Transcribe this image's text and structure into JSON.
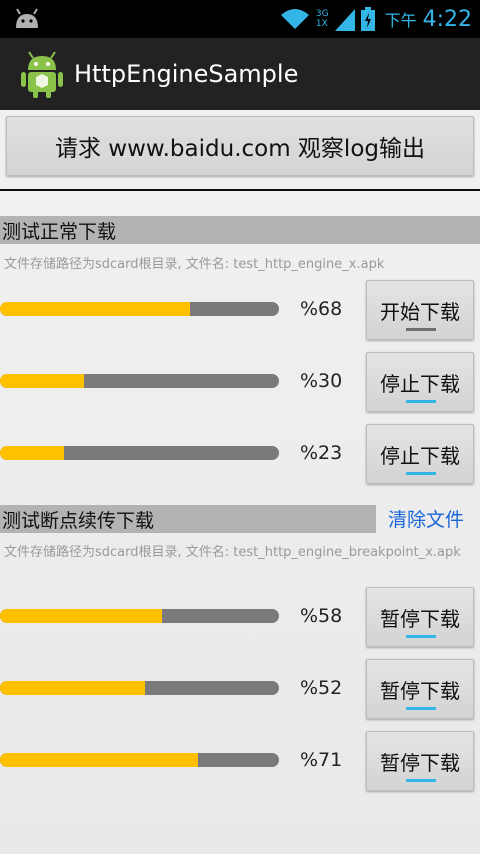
{
  "status_bar": {
    "time_label": "下午",
    "time": "4:22",
    "network": "3G",
    "network_sub": "1X"
  },
  "app": {
    "title": "HttpEngineSample"
  },
  "main_button": {
    "label": "请求 www.baidu.com  观察log输出"
  },
  "normal_section": {
    "title": "测试正常下载",
    "hint": "文件存储路径为sdcard根目录, 文件名: test_http_engine_x.apk",
    "rows": [
      {
        "percent": 68,
        "label": "%68",
        "button": "开始下载",
        "indicator_active": false
      },
      {
        "percent": 30,
        "label": "%30",
        "button": "停止下载",
        "indicator_active": true
      },
      {
        "percent": 23,
        "label": "%23",
        "button": "停止下载",
        "indicator_active": true
      }
    ]
  },
  "breakpoint_section": {
    "title": "测试断点续传下载",
    "clear_label": "清除文件",
    "hint": "文件存储路径为sdcard根目录, 文件名: test_http_engine_breakpoint_x.apk",
    "rows": [
      {
        "percent": 58,
        "label": "%58",
        "button": "暂停下载",
        "indicator_active": true
      },
      {
        "percent": 52,
        "label": "%52",
        "button": "暂停下载",
        "indicator_active": true
      },
      {
        "percent": 71,
        "label": "%71",
        "button": "暂停下载",
        "indicator_active": true
      }
    ]
  },
  "colors": {
    "accent": "#33b5e5",
    "progress": "#ffc000",
    "track": "#7a7a7a",
    "link": "#1a66d9"
  }
}
